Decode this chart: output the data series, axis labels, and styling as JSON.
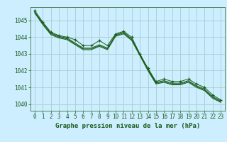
{
  "background_color": "#cceeff",
  "grid_color": "#aacccc",
  "line_color": "#1a5c1a",
  "marker_color": "#1a5c1a",
  "xlabel": "Graphe pression niveau de la mer (hPa)",
  "xlabel_fontsize": 6.5,
  "tick_fontsize": 5.5,
  "xlim": [
    -0.5,
    23.5
  ],
  "ylim": [
    1039.6,
    1045.8
  ],
  "yticks": [
    1040,
    1041,
    1042,
    1043,
    1044,
    1045
  ],
  "xticks": [
    0,
    1,
    2,
    3,
    4,
    5,
    6,
    7,
    8,
    9,
    10,
    11,
    12,
    13,
    14,
    15,
    16,
    17,
    18,
    19,
    20,
    21,
    22,
    23
  ],
  "series": [
    [
      1045.6,
      1044.9,
      1044.3,
      1044.1,
      1044.0,
      1043.85,
      1043.5,
      1043.5,
      1043.8,
      1043.5,
      1044.2,
      1044.35,
      1044.0,
      1043.0,
      1042.15,
      1041.35,
      1041.5,
      1041.35,
      1041.35,
      1041.5,
      1041.2,
      1041.0,
      1040.55,
      1040.25
    ],
    [
      1045.5,
      1044.85,
      1044.25,
      1044.05,
      1043.95,
      1043.65,
      1043.35,
      1043.35,
      1043.55,
      1043.35,
      1044.15,
      1044.3,
      1043.9,
      1043.0,
      1042.1,
      1041.3,
      1041.4,
      1041.25,
      1041.25,
      1041.4,
      1041.1,
      1040.9,
      1040.45,
      1040.2
    ],
    [
      1045.5,
      1044.8,
      1044.2,
      1044.0,
      1043.9,
      1043.6,
      1043.3,
      1043.3,
      1043.5,
      1043.3,
      1044.1,
      1044.25,
      1043.85,
      1042.95,
      1042.05,
      1041.25,
      1041.35,
      1041.2,
      1041.2,
      1041.35,
      1041.05,
      1040.85,
      1040.4,
      1040.15
    ],
    [
      1045.45,
      1044.75,
      1044.15,
      1043.95,
      1043.85,
      1043.55,
      1043.25,
      1043.25,
      1043.45,
      1043.25,
      1044.05,
      1044.2,
      1043.8,
      1042.9,
      1042.0,
      1041.2,
      1041.3,
      1041.15,
      1041.15,
      1041.3,
      1041.0,
      1040.8,
      1040.35,
      1040.1
    ]
  ],
  "marker_size": 3.5,
  "linewidth": 0.7
}
